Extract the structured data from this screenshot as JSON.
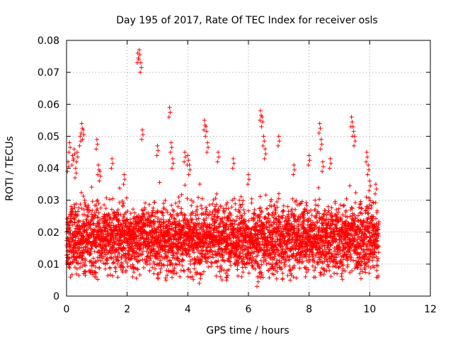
{
  "chart_data": {
    "type": "scatter",
    "title": "Day 195 of 2017, Rate Of TEC Index for receiver osls",
    "xlabel": "GPS time / hours",
    "ylabel": "ROTI / TECUs",
    "xlim": [
      0,
      12
    ],
    "ylim": [
      0,
      0.08
    ],
    "xticks": [
      0,
      2,
      4,
      6,
      8,
      10,
      12
    ],
    "xtick_labels": [
      "0",
      "2",
      "4",
      "6",
      "8",
      "10",
      "12"
    ],
    "yticks": [
      0,
      0.01,
      0.02,
      0.03,
      0.04,
      0.05,
      0.06,
      0.07,
      0.08
    ],
    "ytick_labels": [
      "0",
      "0.01",
      "0.02",
      "0.03",
      "0.04",
      "0.05",
      "0.06",
      "0.07",
      "0.08"
    ],
    "grid": true,
    "marker": "+",
    "marker_color": "#ff0000",
    "data_x_range": [
      0.0,
      10.3
    ],
    "band_y_range": [
      0.008,
      0.03
    ],
    "series": [
      {
        "name": "ROTI",
        "x": [
          0.05,
          0.1,
          0.2,
          0.25,
          0.3,
          0.35,
          0.45,
          0.5,
          0.55,
          1.0,
          1.05,
          1.1,
          1.5,
          1.9,
          2.35,
          2.4,
          2.45,
          2.5,
          3.0,
          3.4,
          3.45,
          3.5,
          3.9,
          4.0,
          4.05,
          4.55,
          4.6,
          4.65,
          5.0,
          5.5,
          6.0,
          6.4,
          6.45,
          6.5,
          6.55,
          7.0,
          7.5,
          8.0,
          8.35,
          8.4,
          8.45,
          8.7,
          9.4,
          9.45,
          9.5,
          9.9,
          9.95,
          10.0,
          10.2,
          0.15,
          0.6,
          1.25,
          1.7,
          2.1,
          2.7,
          3.2,
          3.7,
          4.3,
          4.9,
          5.2,
          5.7,
          6.2,
          6.9,
          7.3,
          7.8,
          8.2,
          8.9,
          9.2,
          9.7,
          10.1,
          0.3,
          0.8,
          1.3,
          1.8,
          2.2,
          2.9,
          3.3,
          3.8,
          4.4,
          5.3,
          5.8,
          6.3,
          6.8,
          7.4,
          7.9,
          8.6,
          9.1,
          9.6,
          10.25
        ],
        "y": [
          0.042,
          0.048,
          0.044,
          0.046,
          0.04,
          0.045,
          0.05,
          0.054,
          0.052,
          0.049,
          0.041,
          0.039,
          0.043,
          0.038,
          0.076,
          0.077,
          0.073,
          0.052,
          0.047,
          0.059,
          0.048,
          0.043,
          0.045,
          0.044,
          0.041,
          0.055,
          0.053,
          0.048,
          0.045,
          0.043,
          0.038,
          0.058,
          0.056,
          0.05,
          0.046,
          0.05,
          0.041,
          0.044,
          0.054,
          0.049,
          0.042,
          0.043,
          0.056,
          0.053,
          0.05,
          0.045,
          0.041,
          0.036,
          0.035,
          0.028,
          0.03,
          0.025,
          0.027,
          0.024,
          0.026,
          0.029,
          0.031,
          0.027,
          0.028,
          0.026,
          0.03,
          0.027,
          0.024,
          0.028,
          0.026,
          0.03,
          0.027,
          0.025,
          0.029,
          0.022,
          0.012,
          0.011,
          0.013,
          0.012,
          0.009,
          0.01,
          0.008,
          0.011,
          0.007,
          0.008,
          0.009,
          0.006,
          0.01,
          0.008,
          0.009,
          0.011,
          0.01,
          0.012,
          0.011
        ]
      }
    ]
  }
}
